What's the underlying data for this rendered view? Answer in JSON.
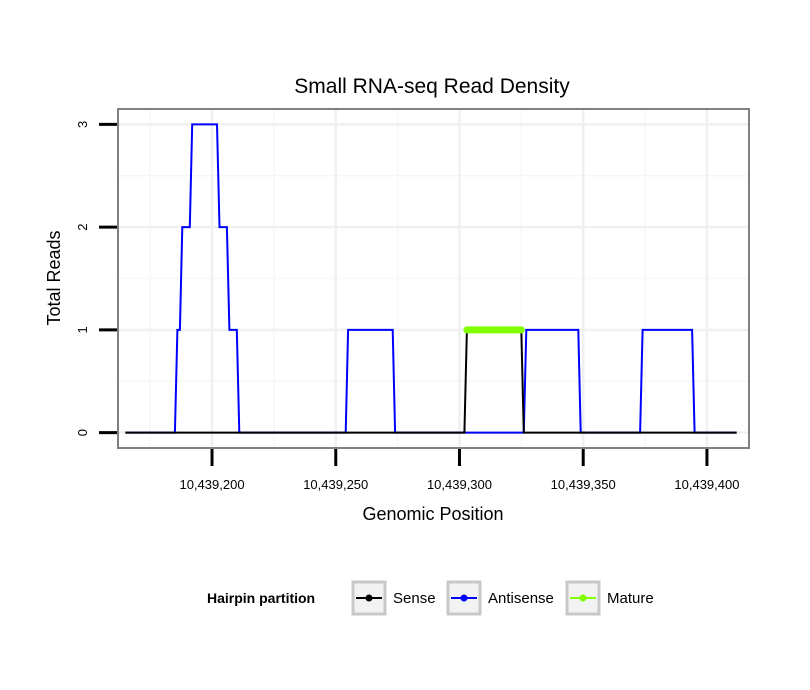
{
  "chart_data": {
    "type": "line",
    "title": "Small RNA-seq Read Density",
    "xlabel": "Genomic Position",
    "ylabel": "Total Reads",
    "xlim": [
      10439162,
      10439417
    ],
    "ylim": [
      -0.15,
      3.15
    ],
    "x_ticks": [
      10439200,
      10439250,
      10439300,
      10439350,
      10439400
    ],
    "x_tick_labels": [
      "10,439,200",
      "10,439,250",
      "10,439,300",
      "10,439,350",
      "10,439,400"
    ],
    "y_ticks": [
      0,
      1,
      2,
      3
    ],
    "y_tick_labels": [
      "0",
      "1",
      "2",
      "3"
    ],
    "grid": true,
    "legend": {
      "title": "Hairpin partition",
      "placement": "bottom",
      "entries": [
        "Sense",
        "Antisense",
        "Mature"
      ]
    },
    "series": [
      {
        "name": "Sense",
        "color": "#000000",
        "x": [
          10439165,
          10439302,
          10439303,
          10439325,
          10439326,
          10439412
        ],
        "y": [
          0,
          0,
          1,
          1,
          0,
          0
        ]
      },
      {
        "name": "Antisense",
        "color": "#0000ff",
        "x": [
          10439165,
          10439185,
          10439186,
          10439187,
          10439188,
          10439191,
          10439192,
          10439202,
          10439203,
          10439206,
          10439207,
          10439210,
          10439211,
          10439213,
          10439214,
          10439254,
          10439255,
          10439273,
          10439274,
          10439326,
          10439327,
          10439348,
          10439349,
          10439373,
          10439374,
          10439394,
          10439395,
          10439412
        ],
        "y": [
          0,
          0,
          1,
          1,
          2,
          2,
          3,
          3,
          2,
          2,
          1,
          1,
          0,
          0,
          0,
          0,
          1,
          1,
          0,
          0,
          1,
          1,
          0,
          0,
          1,
          1,
          0,
          0
        ]
      },
      {
        "name": "Mature",
        "color": "#7fff00",
        "x": [
          10439303,
          10439325
        ],
        "y": [
          1,
          1
        ]
      }
    ]
  }
}
